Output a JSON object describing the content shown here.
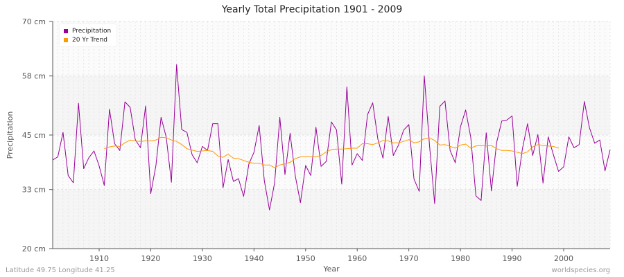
{
  "chart_data": {
    "type": "line",
    "title": "Yearly Total Precipitation 1901 - 2009",
    "xlabel": "Year",
    "ylabel": "Precipitation",
    "xlim": [
      1901,
      2009
    ],
    "ylim": [
      20,
      70
    ],
    "y_ticks": [
      {
        "value": 20,
        "label": "20 cm"
      },
      {
        "value": 33,
        "label": "33 cm"
      },
      {
        "value": 45,
        "label": "45 cm"
      },
      {
        "value": 58,
        "label": "58 cm"
      },
      {
        "value": 70,
        "label": "70 cm"
      }
    ],
    "x_ticks": [
      {
        "value": 1910,
        "label": "1910"
      },
      {
        "value": 1920,
        "label": "1920"
      },
      {
        "value": 1930,
        "label": "1930"
      },
      {
        "value": 1940,
        "label": "1940"
      },
      {
        "value": 1950,
        "label": "1950"
      },
      {
        "value": 1960,
        "label": "1960"
      },
      {
        "value": 1970,
        "label": "1970"
      },
      {
        "value": 1980,
        "label": "1980"
      },
      {
        "value": 1990,
        "label": "1990"
      },
      {
        "value": 2000,
        "label": "2000"
      }
    ],
    "grid": true,
    "legend_position": "top-left",
    "series": [
      {
        "name": "Precipitation",
        "color": "#990099",
        "x_start": 1901,
        "values": [
          39.5,
          40.2,
          45.6,
          36.1,
          34.5,
          52.0,
          37.6,
          40.0,
          41.5,
          38.2,
          33.9,
          50.7,
          43.1,
          41.6,
          52.3,
          51.1,
          44.0,
          42.2,
          51.4,
          32.1,
          38.3,
          48.9,
          44.5,
          34.6,
          60.5,
          46.2,
          45.6,
          40.7,
          38.9,
          42.5,
          41.6,
          47.5,
          47.5,
          33.4,
          39.6,
          34.8,
          35.4,
          31.5,
          38.6,
          41.2,
          47.1,
          35.0,
          28.5,
          34.5,
          48.9,
          36.3,
          45.4,
          36.0,
          30.1,
          38.3,
          36.1,
          46.7,
          38.1,
          39.2,
          47.9,
          46.1,
          34.2,
          55.6,
          38.4,
          40.9,
          39.4,
          49.5,
          52.1,
          44.1,
          39.9,
          49.1,
          40.5,
          42.8,
          46.1,
          47.3,
          35.3,
          32.6,
          58.0,
          42.9,
          29.9,
          51.3,
          52.5,
          41.6,
          38.9,
          46.8,
          50.5,
          44.5,
          31.6,
          30.6,
          45.5,
          32.7,
          43.3,
          48.1,
          48.3,
          49.2,
          33.7,
          41.9,
          47.5,
          40.5,
          45.1,
          34.4,
          44.6,
          40.7,
          37.0,
          38.0,
          44.6,
          42.2,
          42.9,
          52.4,
          46.6,
          43.2,
          43.9,
          37.1,
          41.8
        ]
      },
      {
        "name": "20 Yr Trend",
        "color": "#ff9900",
        "x_start": 1911,
        "values": [
          42.0,
          42.4,
          42.6,
          42.5,
          43.3,
          43.9,
          43.7,
          43.6,
          43.7,
          43.7,
          43.9,
          44.5,
          44.4,
          43.9,
          43.6,
          42.9,
          42.0,
          41.7,
          41.4,
          41.5,
          41.6,
          41.4,
          40.4,
          40.1,
          40.8,
          39.9,
          39.8,
          39.4,
          39.0,
          38.8,
          38.8,
          38.4,
          38.4,
          37.8,
          38.4,
          38.7,
          39.0,
          39.8,
          40.2,
          40.2,
          40.2,
          40.2,
          40.5,
          41.3,
          41.8,
          41.9,
          41.9,
          42.0,
          42.1,
          42.1,
          43.1,
          43.1,
          42.9,
          43.3,
          43.8,
          43.7,
          43.3,
          43.3,
          43.6,
          44.0,
          43.3,
          43.5,
          44.2,
          44.4,
          43.8,
          42.8,
          42.9,
          42.5,
          42.1,
          42.8,
          43.0,
          42.1,
          42.6,
          42.7,
          42.6,
          42.7,
          42.0,
          41.6,
          41.6,
          41.5,
          41.2,
          40.9,
          41.3,
          42.4,
          42.9,
          42.7,
          42.6,
          42.5,
          42.1
        ]
      }
    ]
  },
  "footer": {
    "coords": "Latitude 49.75 Longitude 41.25",
    "source": "worldspecies.org"
  }
}
